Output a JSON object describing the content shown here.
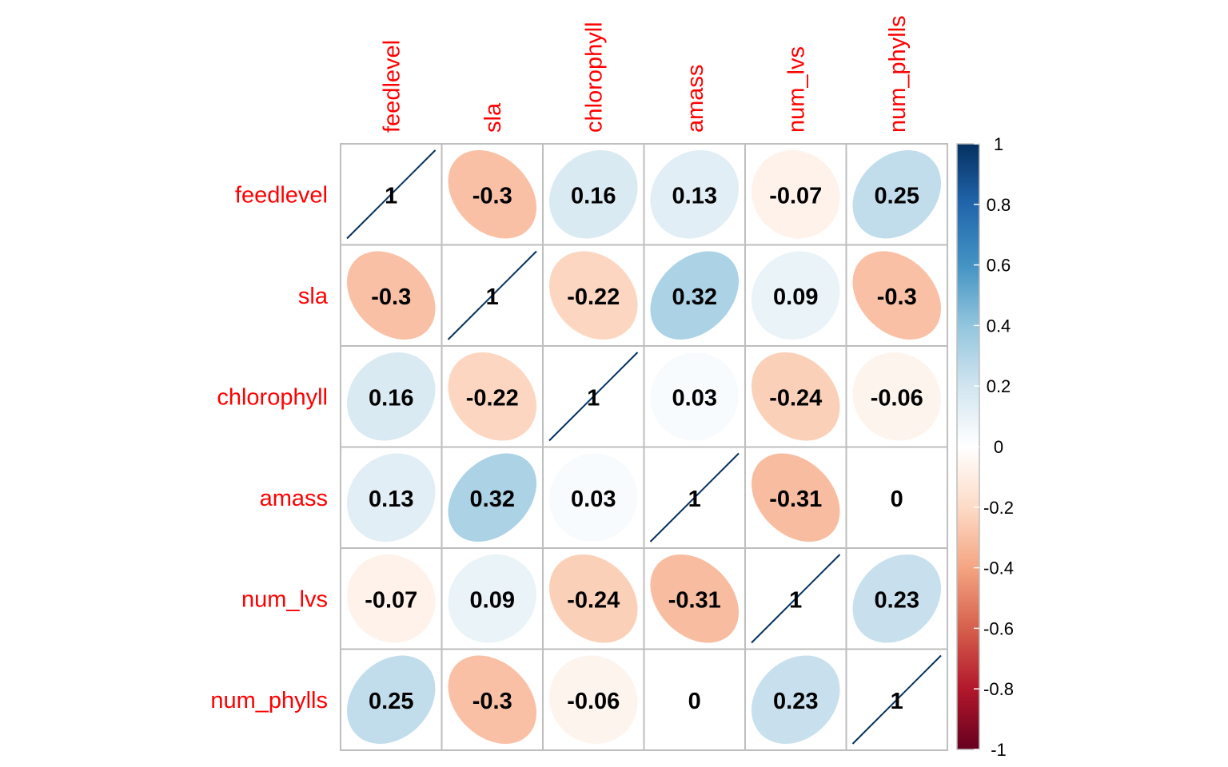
{
  "chart_data": {
    "type": "heatmap",
    "method": "ellipse",
    "variables": [
      "feedlevel",
      "sla",
      "chlorophyll",
      "amass",
      "num_lvs",
      "num_phylls"
    ],
    "matrix": [
      [
        1,
        -0.3,
        0.16,
        0.13,
        -0.07,
        0.25
      ],
      [
        -0.3,
        1,
        -0.22,
        0.32,
        0.09,
        -0.3
      ],
      [
        0.16,
        -0.22,
        1,
        0.03,
        -0.24,
        -0.06
      ],
      [
        0.13,
        0.32,
        0.03,
        1,
        -0.31,
        0
      ],
      [
        -0.07,
        0.09,
        -0.24,
        -0.31,
        1,
        0.23
      ],
      [
        0.25,
        -0.3,
        -0.06,
        0,
        0.23,
        1
      ]
    ],
    "labels": [
      [
        "1",
        "-0.3",
        "0.16",
        "0.13",
        "-0.07",
        "0.25"
      ],
      [
        "-0.3",
        "1",
        "-0.22",
        "0.32",
        "0.09",
        "-0.3"
      ],
      [
        "0.16",
        "-0.22",
        "1",
        "0.03",
        "-0.24",
        "-0.06"
      ],
      [
        "0.13",
        "0.32",
        "0.03",
        "1",
        "-0.31",
        "0"
      ],
      [
        "-0.07",
        "0.09",
        "-0.24",
        "-0.31",
        "1",
        "0.23"
      ],
      [
        "0.25",
        "-0.3",
        "-0.06",
        "0",
        "0.23",
        "1"
      ]
    ],
    "color_scale": {
      "range": [
        -1,
        1
      ],
      "tick_values": [
        1,
        0.8,
        0.6,
        0.4,
        0.2,
        0,
        -0.2,
        -0.4,
        -0.6,
        -0.8,
        -1
      ],
      "tick_labels": [
        "1",
        "0.8",
        "0.6",
        "0.4",
        "0.2",
        "0",
        "-0.2",
        "-0.4",
        "-0.6",
        "-0.8",
        "-1"
      ],
      "stops": [
        "#67001F",
        "#B2182B",
        "#D6604D",
        "#F4A582",
        "#FDDBC7",
        "#FFFFFF",
        "#D1E5F0",
        "#92C5DE",
        "#4393C3",
        "#2166AC",
        "#053061"
      ],
      "placement": "right"
    },
    "colors": {
      "label": "#FF0000",
      "grid": "#BEBEBE",
      "text": "#000000"
    }
  }
}
